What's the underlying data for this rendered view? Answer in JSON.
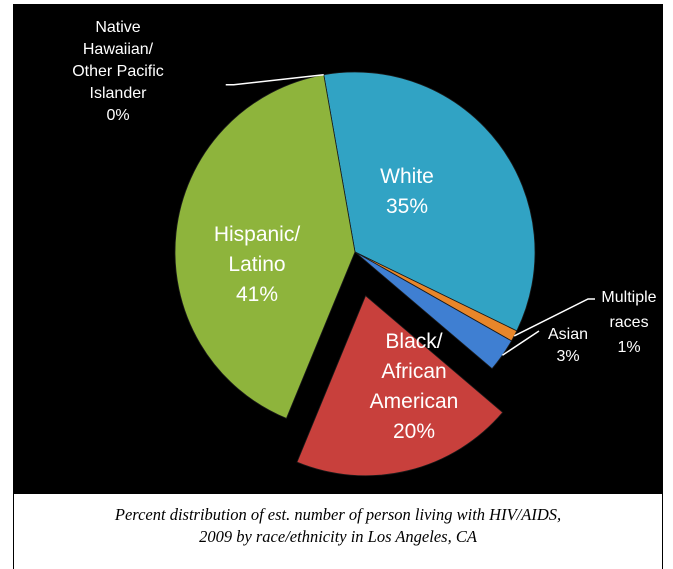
{
  "chart_data": {
    "type": "pie",
    "slices": [
      {
        "label": "White",
        "value": 35,
        "display": "35%",
        "color": "#31a3c4"
      },
      {
        "label": "Multiple races",
        "value": 1,
        "display": "1%",
        "color": "#e8862a"
      },
      {
        "label": "Asian",
        "value": 3,
        "display": "3%",
        "color": "#3f7fd2"
      },
      {
        "label": "Black/ African American",
        "value": 20,
        "display": "20%",
        "color": "#c8403c"
      },
      {
        "label": "Hispanic/ Latino",
        "value": 41,
        "display": "41%",
        "color": "#8eb43c"
      },
      {
        "label": "Native Hawaiian/ Other Pacific Islander",
        "value": 0,
        "display": "0%",
        "color": "#7a5ba8"
      }
    ],
    "exploded": [
      "Black/ African American"
    ],
    "legend": "none",
    "data_labels": {
      "white": [
        "White",
        "35%"
      ],
      "hispanic": [
        "Hispanic/",
        "Latino",
        "41%"
      ],
      "black": [
        "Black/",
        "African",
        "American",
        "20%"
      ],
      "asian": [
        "Asian",
        "3%"
      ],
      "multiple": [
        "Multiple",
        "races",
        "1%"
      ],
      "native": [
        "Native",
        "Hawaiian/",
        "Other Pacific",
        "Islander",
        "0%"
      ]
    }
  },
  "caption": "Percent distribution of est. number of person living with HIV/AIDS,\n2009 by race/ethnicity in Los Angeles, CA",
  "colors": {
    "background": "#000000",
    "text": "#ffffff"
  }
}
